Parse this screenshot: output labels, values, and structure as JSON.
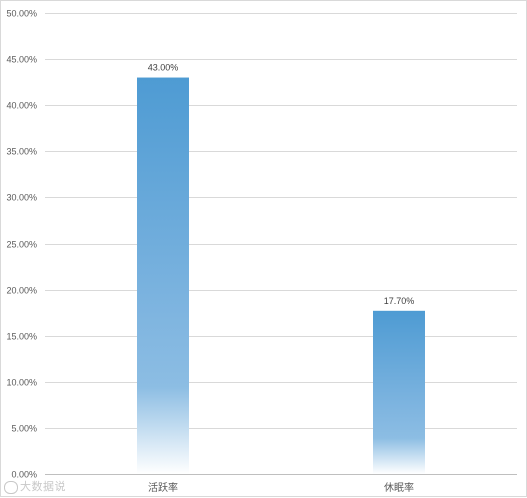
{
  "chart_data": {
    "type": "bar",
    "categories": [
      "活跃率",
      "休眠率"
    ],
    "values": [
      43.0,
      17.7
    ],
    "data_labels": [
      "43.00%",
      "17.70%"
    ],
    "title": "",
    "xlabel": "",
    "ylabel": "",
    "ylim": [
      0,
      50
    ],
    "y_ticks": [
      0,
      5,
      10,
      15,
      20,
      25,
      30,
      35,
      40,
      45,
      50
    ],
    "y_tick_labels": [
      "0.00%",
      "5.00%",
      "10.00%",
      "15.00%",
      "20.00%",
      "25.00%",
      "30.00%",
      "35.00%",
      "40.00%",
      "45.00%",
      "50.00%"
    ],
    "grid": true,
    "legend": "none",
    "bar_color_top": "#4e9bd3",
    "bar_color_bottom": "#ffffff"
  },
  "watermark": {
    "text": "大数据说"
  }
}
